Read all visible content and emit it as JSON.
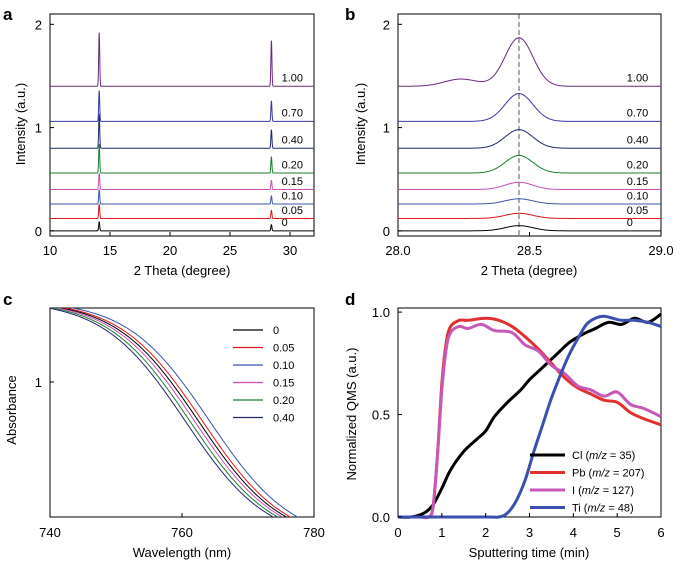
{
  "chart_data": [
    {
      "type": "line",
      "panel_label": "a",
      "xlabel": "2 Theta (degree)",
      "ylabel": "Intensity (a.u.)",
      "xlim": [
        10,
        32
      ],
      "ylim": [
        -0.05,
        2.1
      ],
      "xticks": [
        "10",
        "15",
        "20",
        "25",
        "30"
      ],
      "yticks": [
        "0",
        "1",
        "2"
      ],
      "peaks": [
        14.1,
        28.45
      ],
      "series": [
        {
          "name": "0",
          "offset": 0.0,
          "peak1": 0.09,
          "peak2": 0.06,
          "color": "#000000"
        },
        {
          "name": "0.05",
          "offset": 0.12,
          "peak1": 0.14,
          "peak2": 0.08,
          "color": "#e0161b"
        },
        {
          "name": "0.10",
          "offset": 0.26,
          "peak1": 0.14,
          "peak2": 0.08,
          "color": "#3856a8"
        },
        {
          "name": "0.15",
          "offset": 0.4,
          "peak1": 0.16,
          "peak2": 0.09,
          "color": "#c850b8"
        },
        {
          "name": "0.20",
          "offset": 0.56,
          "peak1": 0.28,
          "peak2": 0.16,
          "color": "#1e7e2e"
        },
        {
          "name": "0.40",
          "offset": 0.8,
          "peak1": 0.33,
          "peak2": 0.18,
          "color": "#1f2a6e"
        },
        {
          "name": "0.70",
          "offset": 1.06,
          "peak1": 0.3,
          "peak2": 0.2,
          "color": "#3a3aa0"
        },
        {
          "name": "1.00",
          "offset": 1.4,
          "peak1": 0.52,
          "peak2": 0.45,
          "color": "#6a2a7e"
        }
      ]
    },
    {
      "type": "line",
      "panel_label": "b",
      "xlabel": "2 Theta (degree)",
      "ylabel": "Intensity (a.u.)",
      "xlim": [
        28.0,
        29.0
      ],
      "ylim": [
        -0.05,
        2.1
      ],
      "xticks": [
        "28.0",
        "28.5",
        "29.0"
      ],
      "yticks": [
        "0",
        "1",
        "2"
      ],
      "dashed_x": 28.46,
      "series": [
        {
          "name": "0",
          "offset": 0.0,
          "height": 0.05,
          "color": "#000000"
        },
        {
          "name": "0.05",
          "offset": 0.12,
          "height": 0.05,
          "color": "#e0161b"
        },
        {
          "name": "0.10",
          "offset": 0.26,
          "height": 0.05,
          "color": "#3856a8"
        },
        {
          "name": "0.15",
          "offset": 0.4,
          "height": 0.07,
          "color": "#c850b8"
        },
        {
          "name": "0.20",
          "offset": 0.56,
          "height": 0.17,
          "color": "#1e7e2e"
        },
        {
          "name": "0.40",
          "offset": 0.8,
          "height": 0.18,
          "color": "#1f2a6e"
        },
        {
          "name": "0.70",
          "offset": 1.06,
          "height": 0.27,
          "color": "#3a3aa0"
        },
        {
          "name": "1.00",
          "offset": 1.4,
          "height": 0.47,
          "color": "#6a2a7e"
        }
      ]
    },
    {
      "type": "line",
      "panel_label": "c",
      "xlabel": "Wavelength (nm)",
      "ylabel": "Absorbance",
      "xlim": [
        740,
        780
      ],
      "xticks": [
        "740",
        "760",
        "780"
      ],
      "yticks": [
        "1"
      ],
      "series": [
        {
          "name": "0",
          "shift": 0.0,
          "color": "#000000"
        },
        {
          "name": "0.05",
          "shift": 0.6,
          "color": "#e0161b"
        },
        {
          "name": "0.10",
          "shift": 1.7,
          "color": "#3856a8"
        },
        {
          "name": "0.15",
          "shift": -0.6,
          "color": "#c850b8"
        },
        {
          "name": "0.20",
          "shift": -1.3,
          "color": "#1e7e2e"
        },
        {
          "name": "0.40",
          "shift": -2.0,
          "color": "#1f2a6e"
        }
      ]
    },
    {
      "type": "line",
      "panel_label": "d",
      "xlabel": "Sputtering time (min)",
      "ylabel": "Normalized QMS (a.u.)",
      "xlim": [
        0,
        6
      ],
      "ylim": [
        0,
        1.02
      ],
      "xticks": [
        "0",
        "1",
        "2",
        "3",
        "4",
        "5",
        "6"
      ],
      "yticks": [
        "0.0",
        "0.5",
        "1.0"
      ],
      "series": [
        {
          "name": "Cl",
          "mz": "35",
          "color": "#000000",
          "x": [
            0.0,
            0.3,
            0.6,
            0.8,
            1.0,
            1.2,
            1.5,
            1.8,
            2.0,
            2.2,
            2.5,
            2.8,
            3.0,
            3.3,
            3.6,
            3.9,
            4.2,
            4.5,
            4.8,
            5.1,
            5.4,
            5.7,
            6.0
          ],
          "y": [
            0.0,
            0.0,
            0.02,
            0.06,
            0.14,
            0.23,
            0.32,
            0.38,
            0.42,
            0.49,
            0.56,
            0.62,
            0.67,
            0.73,
            0.79,
            0.85,
            0.89,
            0.92,
            0.95,
            0.94,
            0.97,
            0.95,
            0.99
          ]
        },
        {
          "name": "Pb",
          "mz": "207",
          "color": "#e03030",
          "x": [
            0.0,
            0.5,
            0.7,
            0.8,
            0.9,
            1.0,
            1.1,
            1.2,
            1.4,
            1.6,
            2.0,
            2.3,
            2.6,
            2.9,
            3.2,
            3.5,
            3.8,
            4.1,
            4.4,
            4.7,
            5.0,
            5.3,
            5.6,
            6.0
          ],
          "y": [
            0.0,
            0.0,
            0.0,
            0.05,
            0.3,
            0.65,
            0.85,
            0.93,
            0.96,
            0.96,
            0.97,
            0.96,
            0.93,
            0.88,
            0.82,
            0.75,
            0.68,
            0.63,
            0.6,
            0.57,
            0.56,
            0.51,
            0.48,
            0.45
          ]
        },
        {
          "name": "I",
          "mz": "127",
          "color": "#c858b8",
          "x": [
            0.0,
            0.5,
            0.7,
            0.8,
            0.9,
            1.0,
            1.1,
            1.2,
            1.4,
            1.6,
            1.9,
            2.2,
            2.6,
            2.9,
            3.2,
            3.5,
            3.8,
            4.1,
            4.4,
            4.7,
            5.0,
            5.3,
            5.6,
            6.0
          ],
          "y": [
            0.0,
            0.0,
            0.0,
            0.05,
            0.3,
            0.62,
            0.82,
            0.9,
            0.93,
            0.92,
            0.94,
            0.91,
            0.9,
            0.84,
            0.81,
            0.74,
            0.7,
            0.64,
            0.62,
            0.59,
            0.61,
            0.55,
            0.53,
            0.49
          ]
        },
        {
          "name": "Ti",
          "mz": "48",
          "color": "#3a4fb0",
          "x": [
            0.0,
            2.0,
            2.3,
            2.5,
            2.7,
            2.9,
            3.1,
            3.3,
            3.5,
            3.7,
            3.9,
            4.1,
            4.3,
            4.5,
            4.7,
            4.9,
            5.1,
            5.4,
            5.7,
            6.0
          ],
          "y": [
            0.0,
            0.0,
            0.0,
            0.02,
            0.08,
            0.18,
            0.32,
            0.45,
            0.58,
            0.69,
            0.79,
            0.87,
            0.94,
            0.97,
            0.98,
            0.97,
            0.96,
            0.96,
            0.95,
            0.93
          ]
        }
      ]
    }
  ]
}
